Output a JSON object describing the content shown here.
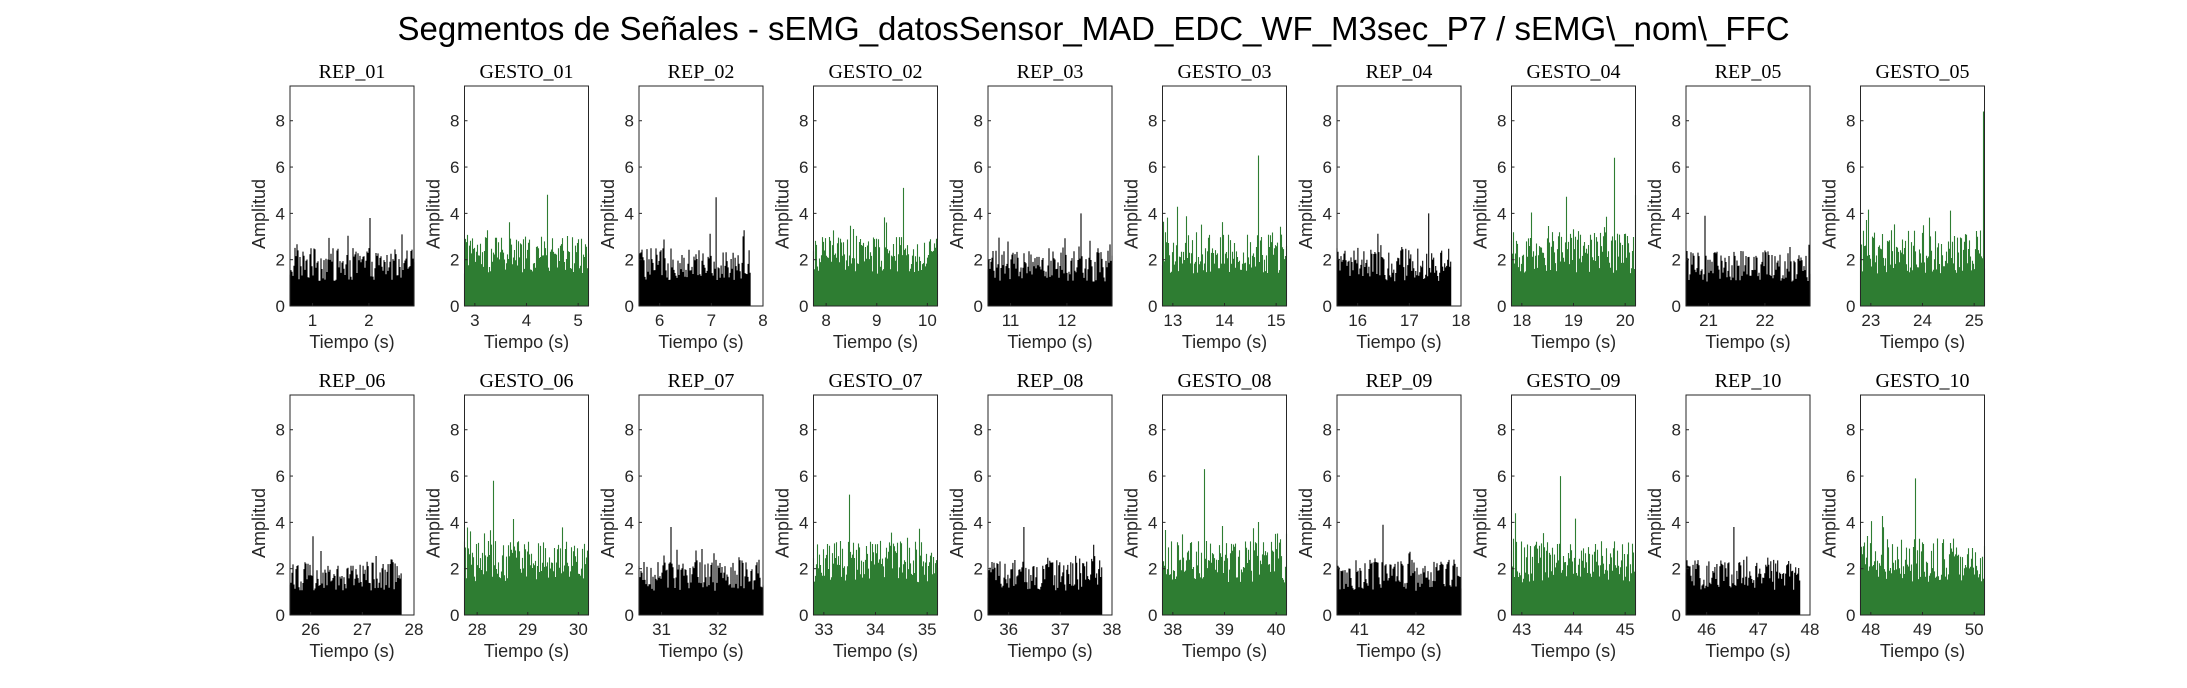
{
  "figure": {
    "title": "Segmentos de Señales - sEMG_datosSensor_MAD_EDC_WF_M3sec_P7 / sEMG\\_nom\\_FFC"
  },
  "colors": {
    "rep": "#000000",
    "gesto": "#2e7d32",
    "axis": "#262626"
  },
  "chart_data": [
    {
      "type": "area",
      "title": "REP_01",
      "xlabel": "Tiempo (s)",
      "ylabel": "Amplitud",
      "xlim": [
        0.6,
        2.8
      ],
      "ylim": [
        0,
        9.5
      ],
      "xticks": [
        1,
        2
      ],
      "yticks": [
        0,
        2,
        4,
        6,
        8
      ],
      "signal_range": [
        0.6,
        2.8
      ],
      "typical_amplitude": [
        1.5,
        2.5
      ],
      "peak_amplitude": 3.8,
      "grid": false,
      "color": "#000000"
    },
    {
      "type": "area",
      "title": "GESTO_01",
      "xlabel": "Tiempo (s)",
      "ylabel": "Amplitud",
      "xlim": [
        2.8,
        5.2
      ],
      "ylim": [
        0,
        9.5
      ],
      "xticks": [
        3,
        4,
        5
      ],
      "yticks": [
        0,
        2,
        4,
        6,
        8
      ],
      "signal_range": [
        2.8,
        5.2
      ],
      "typical_amplitude": [
        2,
        3
      ],
      "peak_amplitude": 4.8,
      "grid": false,
      "color": "#2e7d32"
    },
    {
      "type": "area",
      "title": "REP_02",
      "xlabel": "Tiempo (s)",
      "ylabel": "Amplitud",
      "xlim": [
        5.6,
        8.0
      ],
      "ylim": [
        0,
        9.5
      ],
      "xticks": [
        6,
        7,
        8
      ],
      "yticks": [
        0,
        2,
        4,
        6,
        8
      ],
      "signal_range": [
        5.6,
        7.75
      ],
      "typical_amplitude": [
        1.6,
        2.5
      ],
      "peak_amplitude": 4.7,
      "grid": false,
      "color": "#000000"
    },
    {
      "type": "area",
      "title": "GESTO_02",
      "xlabel": "Tiempo (s)",
      "ylabel": "Amplitud",
      "xlim": [
        7.75,
        10.2
      ],
      "ylim": [
        0,
        9.5
      ],
      "xticks": [
        8,
        9,
        10
      ],
      "yticks": [
        0,
        2,
        4,
        6,
        8
      ],
      "signal_range": [
        7.75,
        10.2
      ],
      "typical_amplitude": [
        2,
        3
      ],
      "peak_amplitude": 5.1,
      "grid": false,
      "color": "#2e7d32"
    },
    {
      "type": "area",
      "title": "REP_03",
      "xlabel": "Tiempo (s)",
      "ylabel": "Amplitud",
      "xlim": [
        10.6,
        12.8
      ],
      "ylim": [
        0,
        9.5
      ],
      "xticks": [
        11,
        12
      ],
      "yticks": [
        0,
        2,
        4,
        6,
        8
      ],
      "signal_range": [
        10.6,
        12.8
      ],
      "typical_amplitude": [
        1.5,
        2.4
      ],
      "peak_amplitude": 4.0,
      "grid": false,
      "color": "#000000"
    },
    {
      "type": "area",
      "title": "GESTO_03",
      "xlabel": "Tiempo (s)",
      "ylabel": "Amplitud",
      "xlim": [
        12.8,
        15.2
      ],
      "ylim": [
        0,
        9.5
      ],
      "xticks": [
        13,
        14,
        15
      ],
      "yticks": [
        0,
        2,
        4,
        6,
        8
      ],
      "signal_range": [
        12.8,
        15.2
      ],
      "typical_amplitude": [
        2,
        3.2
      ],
      "peak_amplitude": 6.5,
      "grid": false,
      "color": "#2e7d32"
    },
    {
      "type": "area",
      "title": "REP_04",
      "xlabel": "Tiempo (s)",
      "ylabel": "Amplitud",
      "xlim": [
        15.6,
        18.0
      ],
      "ylim": [
        0,
        9.5
      ],
      "xticks": [
        16,
        17,
        18
      ],
      "yticks": [
        0,
        2,
        4,
        6,
        8
      ],
      "signal_range": [
        15.6,
        17.8
      ],
      "typical_amplitude": [
        1.5,
        2.5
      ],
      "peak_amplitude": 4.0,
      "grid": false,
      "color": "#000000"
    },
    {
      "type": "area",
      "title": "GESTO_04",
      "xlabel": "Tiempo (s)",
      "ylabel": "Amplitud",
      "xlim": [
        17.8,
        20.2
      ],
      "ylim": [
        0,
        9.5
      ],
      "xticks": [
        18,
        19,
        20
      ],
      "yticks": [
        0,
        2,
        4,
        6,
        8
      ],
      "signal_range": [
        17.8,
        20.2
      ],
      "typical_amplitude": [
        2,
        3.2
      ],
      "peak_amplitude": 6.4,
      "grid": false,
      "color": "#2e7d32"
    },
    {
      "type": "area",
      "title": "REP_05",
      "xlabel": "Tiempo (s)",
      "ylabel": "Amplitud",
      "xlim": [
        20.6,
        22.8
      ],
      "ylim": [
        0,
        9.5
      ],
      "xticks": [
        21,
        22
      ],
      "yticks": [
        0,
        2,
        4,
        6,
        8
      ],
      "signal_range": [
        20.6,
        22.8
      ],
      "typical_amplitude": [
        1.5,
        2.4
      ],
      "peak_amplitude": 3.9,
      "grid": false,
      "color": "#000000"
    },
    {
      "type": "area",
      "title": "GESTO_05",
      "xlabel": "Tiempo (s)",
      "ylabel": "Amplitud",
      "xlim": [
        22.8,
        25.2
      ],
      "ylim": [
        0,
        9.5
      ],
      "xticks": [
        23,
        24,
        25
      ],
      "yticks": [
        0,
        2,
        4,
        6,
        8
      ],
      "signal_range": [
        22.8,
        25.2
      ],
      "typical_amplitude": [
        2,
        3.3
      ],
      "peak_amplitude": 8.4,
      "grid": false,
      "color": "#2e7d32"
    },
    {
      "type": "area",
      "title": "REP_06",
      "xlabel": "Tiempo (s)",
      "ylabel": "Amplitud",
      "xlim": [
        25.6,
        28.0
      ],
      "ylim": [
        0,
        9.5
      ],
      "xticks": [
        26,
        27,
        28
      ],
      "yticks": [
        0,
        2,
        4,
        6,
        8
      ],
      "signal_range": [
        25.6,
        27.75
      ],
      "typical_amplitude": [
        1.5,
        2.4
      ],
      "peak_amplitude": 3.4,
      "grid": false,
      "color": "#000000"
    },
    {
      "type": "area",
      "title": "GESTO_06",
      "xlabel": "Tiempo (s)",
      "ylabel": "Amplitud",
      "xlim": [
        27.75,
        30.2
      ],
      "ylim": [
        0,
        9.5
      ],
      "xticks": [
        28,
        29,
        30
      ],
      "yticks": [
        0,
        2,
        4,
        6,
        8
      ],
      "signal_range": [
        27.75,
        30.2
      ],
      "typical_amplitude": [
        2,
        3.2
      ],
      "peak_amplitude": 5.8,
      "grid": false,
      "color": "#2e7d32"
    },
    {
      "type": "area",
      "title": "REP_07",
      "xlabel": "Tiempo (s)",
      "ylabel": "Amplitud",
      "xlim": [
        30.6,
        32.8
      ],
      "ylim": [
        0,
        9.5
      ],
      "xticks": [
        31,
        32
      ],
      "yticks": [
        0,
        2,
        4,
        6,
        8
      ],
      "signal_range": [
        30.6,
        32.8
      ],
      "typical_amplitude": [
        1.5,
        2.4
      ],
      "peak_amplitude": 3.8,
      "grid": false,
      "color": "#000000"
    },
    {
      "type": "area",
      "title": "GESTO_07",
      "xlabel": "Tiempo (s)",
      "ylabel": "Amplitud",
      "xlim": [
        32.8,
        35.2
      ],
      "ylim": [
        0,
        9.5
      ],
      "xticks": [
        33,
        34,
        35
      ],
      "yticks": [
        0,
        2,
        4,
        6,
        8
      ],
      "signal_range": [
        32.8,
        35.2
      ],
      "typical_amplitude": [
        2,
        3.2
      ],
      "peak_amplitude": 5.2,
      "grid": false,
      "color": "#2e7d32"
    },
    {
      "type": "area",
      "title": "REP_08",
      "xlabel": "Tiempo (s)",
      "ylabel": "Amplitud",
      "xlim": [
        35.6,
        38.0
      ],
      "ylim": [
        0,
        9.5
      ],
      "xticks": [
        36,
        37,
        38
      ],
      "yticks": [
        0,
        2,
        4,
        6,
        8
      ],
      "signal_range": [
        35.6,
        37.8
      ],
      "typical_amplitude": [
        1.5,
        2.5
      ],
      "peak_amplitude": 3.8,
      "grid": false,
      "color": "#000000"
    },
    {
      "type": "area",
      "title": "GESTO_08",
      "xlabel": "Tiempo (s)",
      "ylabel": "Amplitud",
      "xlim": [
        37.8,
        40.2
      ],
      "ylim": [
        0,
        9.5
      ],
      "xticks": [
        38,
        39,
        40
      ],
      "yticks": [
        0,
        2,
        4,
        6,
        8
      ],
      "signal_range": [
        37.8,
        40.2
      ],
      "typical_amplitude": [
        2,
        3.2
      ],
      "peak_amplitude": 6.3,
      "grid": false,
      "color": "#2e7d32"
    },
    {
      "type": "area",
      "title": "REP_09",
      "xlabel": "Tiempo (s)",
      "ylabel": "Amplitud",
      "xlim": [
        40.6,
        42.8
      ],
      "ylim": [
        0,
        9.5
      ],
      "xticks": [
        41,
        42
      ],
      "yticks": [
        0,
        2,
        4,
        6,
        8
      ],
      "signal_range": [
        40.6,
        42.8
      ],
      "typical_amplitude": [
        1.5,
        2.4
      ],
      "peak_amplitude": 3.9,
      "grid": false,
      "color": "#000000"
    },
    {
      "type": "area",
      "title": "GESTO_09",
      "xlabel": "Tiempo (s)",
      "ylabel": "Amplitud",
      "xlim": [
        42.8,
        45.2
      ],
      "ylim": [
        0,
        9.5
      ],
      "xticks": [
        43,
        44,
        45
      ],
      "yticks": [
        0,
        2,
        4,
        6,
        8
      ],
      "signal_range": [
        42.8,
        45.2
      ],
      "typical_amplitude": [
        2,
        3.2
      ],
      "peak_amplitude": 6.0,
      "grid": false,
      "color": "#2e7d32"
    },
    {
      "type": "area",
      "title": "REP_10",
      "xlabel": "Tiempo (s)",
      "ylabel": "Amplitud",
      "xlim": [
        45.6,
        48.0
      ],
      "ylim": [
        0,
        9.5
      ],
      "xticks": [
        46,
        47,
        48
      ],
      "yticks": [
        0,
        2,
        4,
        6,
        8
      ],
      "signal_range": [
        45.6,
        47.8
      ],
      "typical_amplitude": [
        1.5,
        2.4
      ],
      "peak_amplitude": 3.8,
      "grid": false,
      "color": "#000000"
    },
    {
      "type": "area",
      "title": "GESTO_10",
      "xlabel": "Tiempo (s)",
      "ylabel": "Amplitud",
      "xlim": [
        47.8,
        50.2
      ],
      "ylim": [
        0,
        9.5
      ],
      "xticks": [
        48,
        49,
        50
      ],
      "yticks": [
        0,
        2,
        4,
        6,
        8
      ],
      "signal_range": [
        47.8,
        50.2
      ],
      "typical_amplitude": [
        2,
        3.3
      ],
      "peak_amplitude": 5.9,
      "grid": false,
      "color": "#2e7d32"
    }
  ]
}
